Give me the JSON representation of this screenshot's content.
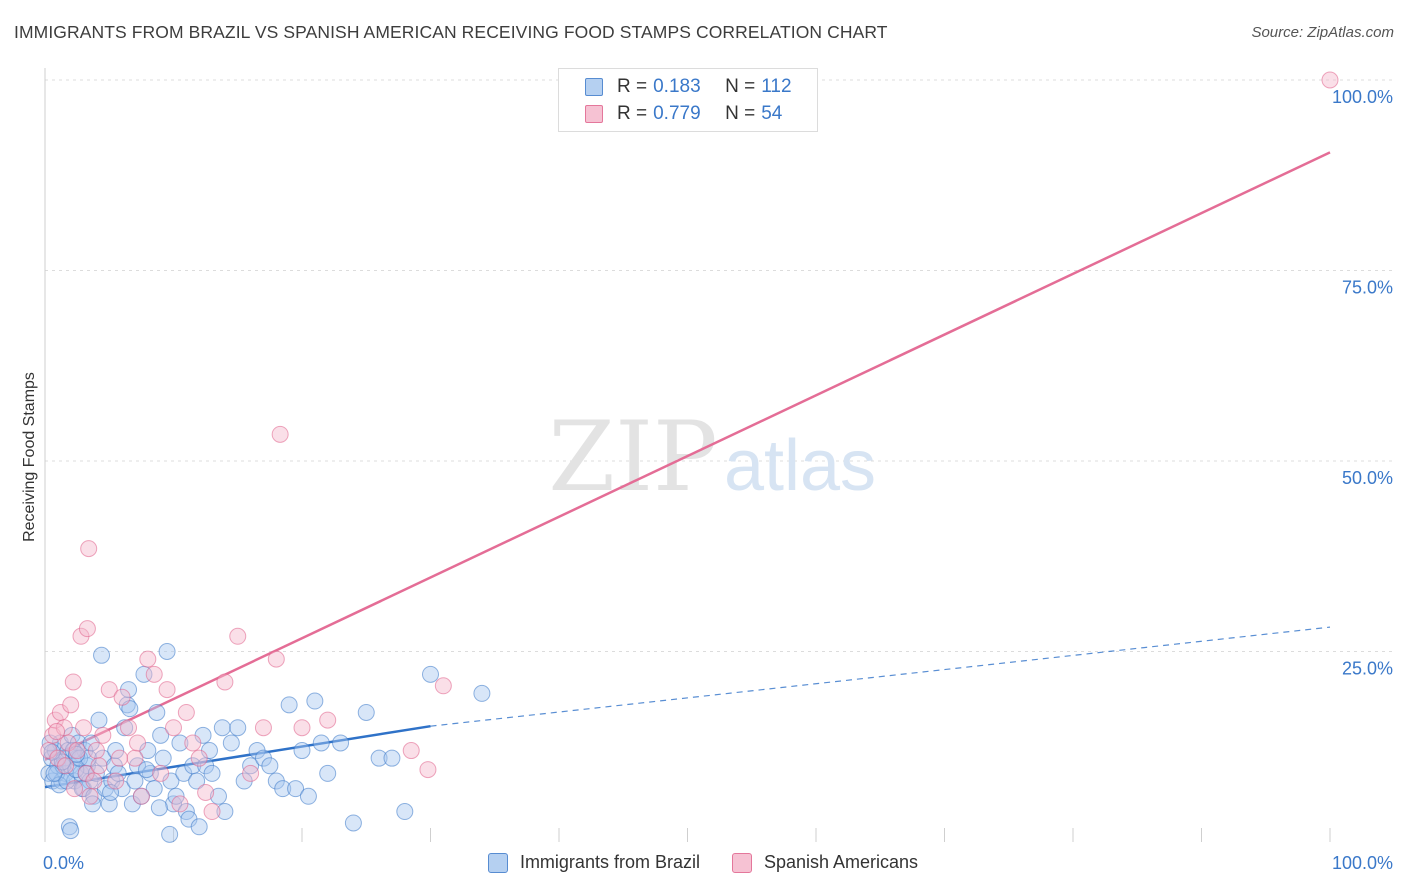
{
  "colors": {
    "blue_fill": "#a9c8ef",
    "blue_stroke": "#3a78c9",
    "pink_fill": "#f5b8cc",
    "pink_stroke": "#e0608a",
    "blue_line": "#2f72c8",
    "pink_line": "#e46d96",
    "axis_text": "#3a78c9",
    "grid": "#dcdcdc",
    "watermark": "#e3e3e3",
    "watermark_atlas": "#d7e4f3"
  },
  "chart_data": {
    "type": "scatter",
    "title": "IMMIGRANTS FROM BRAZIL VS SPANISH AMERICAN RECEIVING FOOD STAMPS CORRELATION CHART",
    "source": "Source: ZipAtlas.com",
    "xlabel": "",
    "ylabel": "Receiving Food Stamps",
    "xlim": [
      0,
      100
    ],
    "ylim": [
      0,
      100
    ],
    "x_tick_labels": [
      "0.0%",
      "100.0%"
    ],
    "y_ticks": [
      {
        "value": 100,
        "label": "100.0%"
      },
      {
        "value": 75,
        "label": "75.0%"
      },
      {
        "value": 50,
        "label": "50.0%"
      },
      {
        "value": 25,
        "label": "25.0%"
      }
    ],
    "watermark": {
      "zip": "ZIP",
      "atlas": "atlas"
    },
    "legend": [
      {
        "r_label": "R = ",
        "r_value": "0.183",
        "n_label": "N = ",
        "n_value": "112"
      },
      {
        "r_label": "R = ",
        "r_value": "0.779",
        "n_label": "N = ",
        "n_value": "54"
      }
    ],
    "series": [
      {
        "name": "Immigrants from Brazil",
        "color": "blue",
        "trend_solid": [
          [
            0,
            7.2
          ],
          [
            30,
            15.2
          ]
        ],
        "trend_dashed": [
          [
            30,
            15.2
          ],
          [
            100,
            28.2
          ]
        ],
        "points": [
          [
            0.3,
            9
          ],
          [
            0.5,
            11
          ],
          [
            0.6,
            8
          ],
          [
            0.8,
            12
          ],
          [
            1.0,
            10
          ],
          [
            1.2,
            13
          ],
          [
            1.3,
            8
          ],
          [
            1.5,
            11
          ],
          [
            1.6,
            9
          ],
          [
            1.8,
            12
          ],
          [
            2.0,
            10
          ],
          [
            2.1,
            14
          ],
          [
            2.3,
            8
          ],
          [
            2.5,
            11
          ],
          [
            2.6,
            13
          ],
          [
            2.8,
            9
          ],
          [
            3.0,
            7
          ],
          [
            3.1,
            12
          ],
          [
            3.3,
            10
          ],
          [
            3.5,
            8
          ],
          [
            0.4,
            13
          ],
          [
            0.9,
            9
          ],
          [
            1.1,
            7.5
          ],
          [
            1.4,
            10
          ],
          [
            1.7,
            8
          ],
          [
            2.2,
            12
          ],
          [
            2.4,
            9.5
          ],
          [
            2.7,
            11
          ],
          [
            2.9,
            7
          ],
          [
            3.2,
            9
          ],
          [
            3.4,
            11
          ],
          [
            3.6,
            13
          ],
          [
            3.8,
            6
          ],
          [
            4.0,
            9
          ],
          [
            4.2,
            16
          ],
          [
            4.5,
            11
          ],
          [
            4.7,
            7
          ],
          [
            5.0,
            5
          ],
          [
            5.2,
            8
          ],
          [
            5.4,
            10
          ],
          [
            5.5,
            12
          ],
          [
            5.7,
            9
          ],
          [
            6.0,
            7
          ],
          [
            6.2,
            15
          ],
          [
            6.4,
            18
          ],
          [
            6.5,
            20
          ],
          [
            6.8,
            5
          ],
          [
            7.0,
            8
          ],
          [
            7.2,
            10
          ],
          [
            7.5,
            6
          ],
          [
            7.7,
            22
          ],
          [
            8.0,
            12
          ],
          [
            8.2,
            9
          ],
          [
            8.5,
            7
          ],
          [
            8.7,
            17
          ],
          [
            9.0,
            14
          ],
          [
            9.2,
            11
          ],
          [
            9.5,
            25
          ],
          [
            9.8,
            8
          ],
          [
            10.0,
            5
          ],
          [
            10.2,
            6
          ],
          [
            10.5,
            13
          ],
          [
            10.8,
            9
          ],
          [
            11.0,
            4
          ],
          [
            11.2,
            3
          ],
          [
            11.5,
            10
          ],
          [
            11.8,
            8
          ],
          [
            12.0,
            2
          ],
          [
            12.3,
            14
          ],
          [
            12.5,
            10
          ],
          [
            12.8,
            12
          ],
          [
            13.0,
            9
          ],
          [
            13.5,
            6
          ],
          [
            13.8,
            15
          ],
          [
            14.0,
            4
          ],
          [
            14.5,
            13
          ],
          [
            15.0,
            15
          ],
          [
            15.5,
            8
          ],
          [
            16.0,
            10
          ],
          [
            16.5,
            12
          ],
          [
            17.0,
            11
          ],
          [
            17.5,
            10
          ],
          [
            18.0,
            8
          ],
          [
            18.5,
            7
          ],
          [
            19.0,
            18
          ],
          [
            19.5,
            7
          ],
          [
            20.0,
            12
          ],
          [
            20.5,
            6
          ],
          [
            21.0,
            18.5
          ],
          [
            21.5,
            13
          ],
          [
            22.0,
            9
          ],
          [
            23.0,
            13
          ],
          [
            24.0,
            2.5
          ],
          [
            25.0,
            17
          ],
          [
            26.0,
            11
          ],
          [
            1.9,
            2
          ],
          [
            3.7,
            5
          ],
          [
            4.4,
            24.5
          ],
          [
            5.1,
            6.5
          ],
          [
            6.6,
            17.5
          ],
          [
            7.9,
            9.5
          ],
          [
            8.9,
            4.5
          ],
          [
            2.0,
            1.5
          ],
          [
            9.7,
            1
          ],
          [
            27.0,
            11
          ],
          [
            28.0,
            4
          ],
          [
            30.0,
            22
          ],
          [
            34.0,
            19.5
          ],
          [
            0.7,
            9
          ],
          [
            1.35,
            10.5
          ],
          [
            2.45,
            11.5
          ],
          [
            0.55,
            11.8
          ]
        ]
      },
      {
        "name": "Spanish Americans",
        "color": "pink",
        "trend_solid": [
          [
            0,
            10.8
          ],
          [
            100,
            90.5
          ]
        ],
        "points": [
          [
            0.3,
            12
          ],
          [
            0.6,
            14
          ],
          [
            0.8,
            16
          ],
          [
            1.0,
            11
          ],
          [
            1.2,
            17
          ],
          [
            1.5,
            15
          ],
          [
            1.8,
            13
          ],
          [
            2.0,
            18
          ],
          [
            2.2,
            21
          ],
          [
            2.5,
            12
          ],
          [
            2.8,
            27
          ],
          [
            3.0,
            15
          ],
          [
            3.2,
            9
          ],
          [
            3.5,
            6
          ],
          [
            3.8,
            8
          ],
          [
            4.0,
            12
          ],
          [
            4.5,
            14
          ],
          [
            5.0,
            20
          ],
          [
            5.5,
            8
          ],
          [
            6.0,
            19
          ],
          [
            6.5,
            15
          ],
          [
            7.0,
            11
          ],
          [
            7.5,
            6
          ],
          [
            8.0,
            24
          ],
          [
            8.5,
            22
          ],
          [
            9.0,
            9
          ],
          [
            9.5,
            20
          ],
          [
            10.0,
            15
          ],
          [
            10.5,
            5
          ],
          [
            11.0,
            17
          ],
          [
            11.5,
            13
          ],
          [
            12.0,
            11
          ],
          [
            13.0,
            4
          ],
          [
            14.0,
            21
          ],
          [
            15.0,
            27
          ],
          [
            16.0,
            9
          ],
          [
            17.0,
            15
          ],
          [
            18.0,
            24
          ],
          [
            20.0,
            15
          ],
          [
            22.0,
            16
          ],
          [
            3.3,
            28
          ],
          [
            3.4,
            38.5
          ],
          [
            18.3,
            53.5
          ],
          [
            28.5,
            12
          ],
          [
            29.8,
            9.5
          ],
          [
            31.0,
            20.5
          ],
          [
            100,
            100
          ],
          [
            0.9,
            14.5
          ],
          [
            1.6,
            10
          ],
          [
            2.3,
            7
          ],
          [
            4.2,
            10
          ],
          [
            5.8,
            11
          ],
          [
            7.2,
            13
          ],
          [
            12.5,
            6.5
          ]
        ]
      }
    ]
  }
}
